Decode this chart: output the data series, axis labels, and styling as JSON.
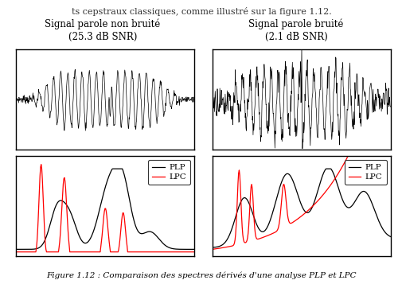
{
  "title_left": "Signal parole non bruité\n(25.3 dB SNR)",
  "title_right": "Signal parole bruité\n(2.1 dB SNR)",
  "page_text": "ts cepstraux classiques, comme illustré sur la figure 1.12.",
  "fig_caption": "Figure 1.12 : Comparaison des spectres dérivés d'une analyse PLP et LPC",
  "bg_color": "#ffffff",
  "waveform_color": "#000000",
  "plp_color": "#000000",
  "lpc_color": "#ff0000",
  "n_points": 500
}
